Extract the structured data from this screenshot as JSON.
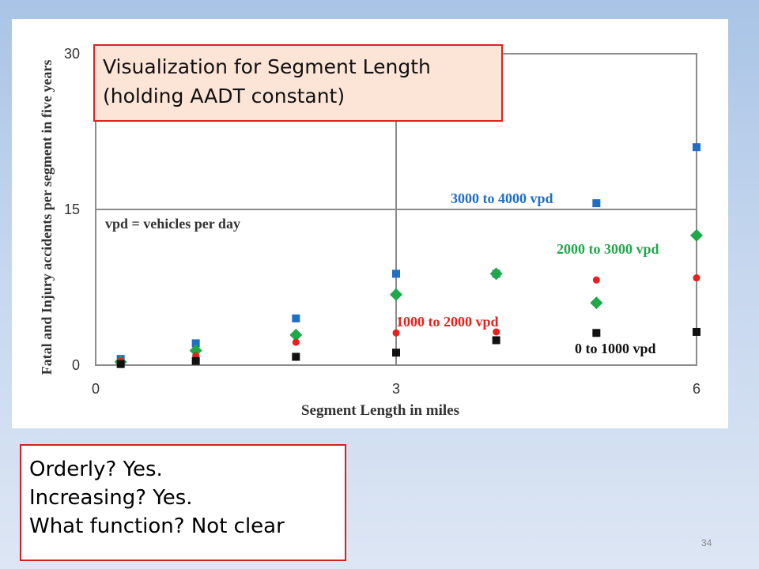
{
  "slide": {
    "page_number": "34"
  },
  "chart_title": {
    "line1": "Visualization for Segment Length",
    "line2": "(holding AADT constant)"
  },
  "notes": {
    "line1": "Orderly? Yes.",
    "line2": "Increasing? Yes.",
    "line3": "What function? Not clear"
  },
  "chart_data": {
    "type": "scatter",
    "xlabel": "Segment Length in miles",
    "ylabel": "Fatal and Injury accidents per segment in five years",
    "xlim": [
      0,
      6
    ],
    "ylim": [
      0,
      30
    ],
    "x_ticks": [
      "0",
      "3",
      "6"
    ],
    "y_ticks": [
      "0",
      "15",
      "30"
    ],
    "grid": true,
    "annotation": "vpd = vehicles per day",
    "series": [
      {
        "name": "3000 to 4000 vpd",
        "color": "#1f6fc4",
        "marker": "square",
        "points": [
          [
            0.25,
            0.6
          ],
          [
            1.0,
            2.1
          ],
          [
            2.0,
            4.5
          ],
          [
            3.0,
            8.8
          ],
          [
            4.0,
            8.8
          ],
          [
            5.0,
            15.6
          ],
          [
            6.0,
            21.0
          ]
        ]
      },
      {
        "name": "2000 to 3000 vpd",
        "color": "#1fa84a",
        "marker": "diamond",
        "points": [
          [
            0.25,
            0.3
          ],
          [
            1.0,
            1.4
          ],
          [
            2.0,
            2.9
          ],
          [
            3.0,
            6.8
          ],
          [
            4.0,
            8.8
          ],
          [
            5.0,
            6.0
          ],
          [
            6.0,
            12.5
          ]
        ]
      },
      {
        "name": "1000 to 2000 vpd",
        "color": "#e8201c",
        "marker": "circle",
        "points": [
          [
            0.25,
            0.4
          ],
          [
            1.0,
            0.9
          ],
          [
            2.0,
            2.2
          ],
          [
            3.0,
            3.1
          ],
          [
            4.0,
            3.2
          ],
          [
            5.0,
            8.2
          ],
          [
            6.0,
            8.4
          ]
        ]
      },
      {
        "name": "0 to 1000 vpd",
        "color": "#111111",
        "marker": "square",
        "points": [
          [
            0.25,
            0.1
          ],
          [
            1.0,
            0.4
          ],
          [
            2.0,
            0.8
          ],
          [
            3.0,
            1.2
          ],
          [
            4.0,
            2.4
          ],
          [
            5.0,
            3.1
          ],
          [
            6.0,
            3.2
          ]
        ]
      }
    ]
  }
}
